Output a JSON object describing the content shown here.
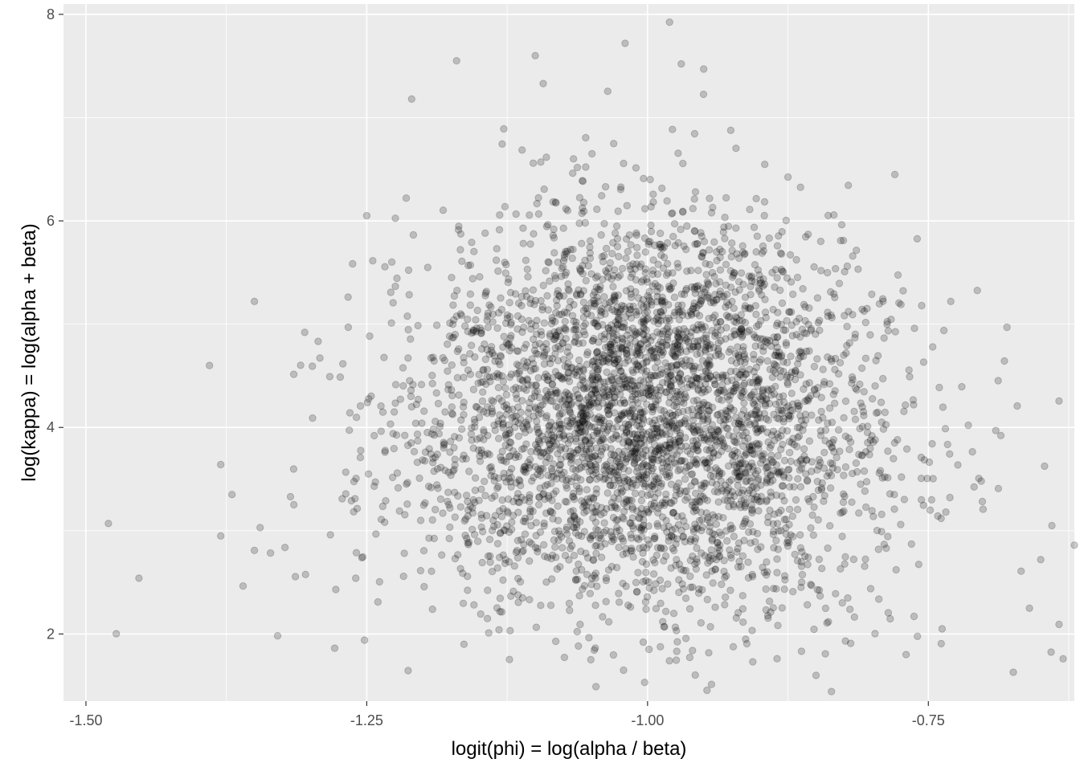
{
  "chart_data": {
    "type": "scatter",
    "title": "",
    "xlabel": "logit(phi) = log(alpha / beta)",
    "ylabel": "log(kappa) = log(alpha + beta)",
    "xlim": [
      -1.52,
      -0.62
    ],
    "ylim": [
      1.35,
      8.1
    ],
    "x_ticks": [
      -1.5,
      -1.25,
      -1.0,
      -0.75
    ],
    "x_tick_labels": [
      "-1.50",
      "-1.25",
      "-1.00",
      "-0.75"
    ],
    "x_minor_ticks": [
      -1.375,
      -1.125,
      -0.875,
      -0.625
    ],
    "y_ticks": [
      2,
      4,
      6,
      8
    ],
    "y_tick_labels": [
      "2",
      "4",
      "6",
      "8"
    ],
    "y_minor_ticks": [
      3,
      5,
      7
    ],
    "grid": true,
    "point_color": "#000000",
    "point_alpha": 0.2,
    "panel_background": "#ebebeb",
    "gridline_color": "#ffffff",
    "n_points": 4000,
    "points_x_mean": -1.0,
    "points_x_sd": 0.1,
    "points_y_mean": 4.1,
    "points_y_sd": 0.95,
    "outliers": [
      [
        -1.48,
        3.07
      ],
      [
        -1.39,
        4.6
      ],
      [
        -1.38,
        3.64
      ],
      [
        -1.38,
        2.95
      ],
      [
        -1.35,
        5.22
      ],
      [
        -1.35,
        2.81
      ],
      [
        -1.37,
        3.35
      ],
      [
        -0.63,
        1.76
      ],
      [
        -0.62,
        2.86
      ],
      [
        -0.65,
        2.72
      ],
      [
        -0.66,
        2.25
      ],
      [
        -0.64,
        3.05
      ],
      [
        -0.68,
        4.97
      ],
      [
        -0.69,
        3.97
      ],
      [
        -0.85,
        1.6
      ],
      [
        -0.96,
        1.84
      ],
      [
        -1.02,
        7.72
      ],
      [
        -1.1,
        7.6
      ],
      [
        -0.97,
        7.52
      ],
      [
        -1.17,
        7.55
      ],
      [
        -1.21,
        7.18
      ],
      [
        -1.25,
        6.05
      ],
      [
        -0.73,
        5.22
      ],
      [
        -0.95,
        7.47
      ]
    ]
  }
}
